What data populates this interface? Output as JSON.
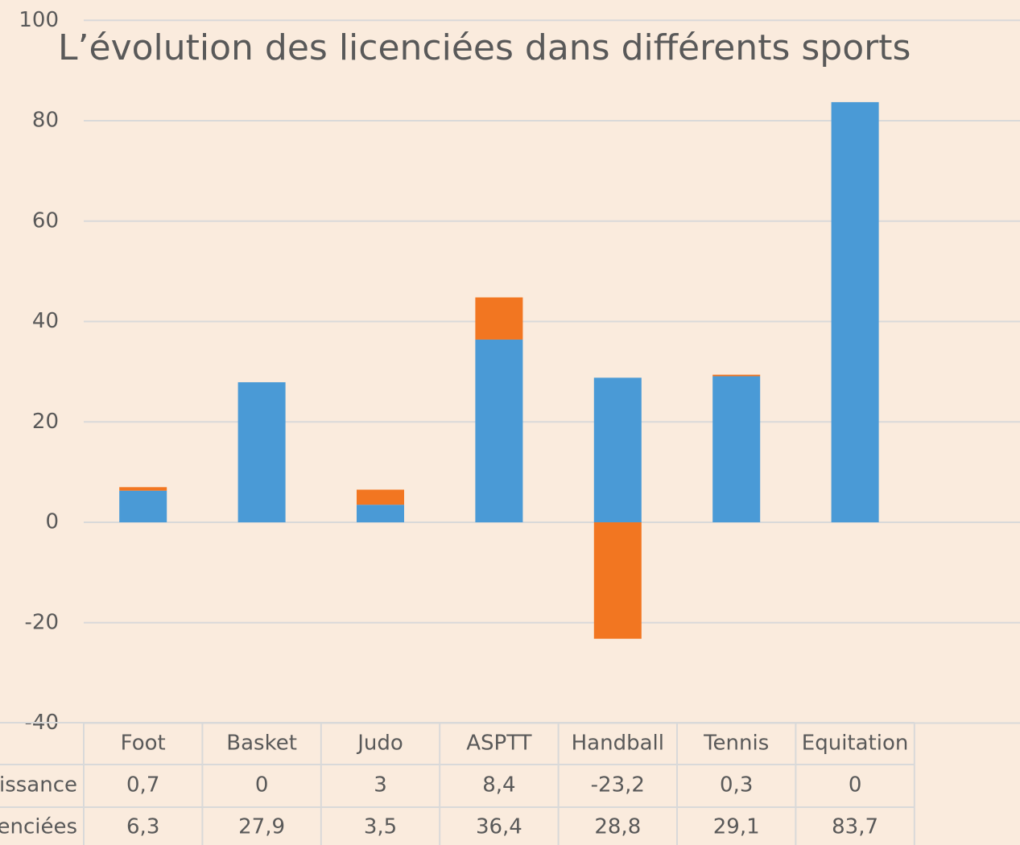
{
  "chart_data": {
    "type": "stacked_bar",
    "title": "L’évolution des licenciées dans différents sports",
    "categories": [
      "Foot",
      "Basket",
      "Judo",
      "ASPTT",
      "Handball",
      "Tennis",
      "Equitation"
    ],
    "series": [
      {
        "name": "issance",
        "color": "#f27621",
        "values": [
          0.7,
          0,
          3,
          8.4,
          -23.2,
          0.3,
          0
        ],
        "value_labels": [
          "0,7",
          "0",
          "3",
          "8,4",
          "-23,2",
          "0,3",
          "0"
        ]
      },
      {
        "name": "enciées",
        "color": "#4a9ad6",
        "values": [
          6.3,
          27.9,
          3.5,
          36.4,
          28.8,
          29.1,
          83.7
        ],
        "value_labels": [
          "6,3",
          "27,9",
          "3,5",
          "36,4",
          "28,8",
          "29,1",
          "83,7"
        ]
      }
    ],
    "ylim": [
      -40,
      100
    ],
    "yticks": [
      -40,
      -20,
      0,
      20,
      40,
      60,
      80,
      100
    ],
    "grid": true,
    "data_table": true
  }
}
